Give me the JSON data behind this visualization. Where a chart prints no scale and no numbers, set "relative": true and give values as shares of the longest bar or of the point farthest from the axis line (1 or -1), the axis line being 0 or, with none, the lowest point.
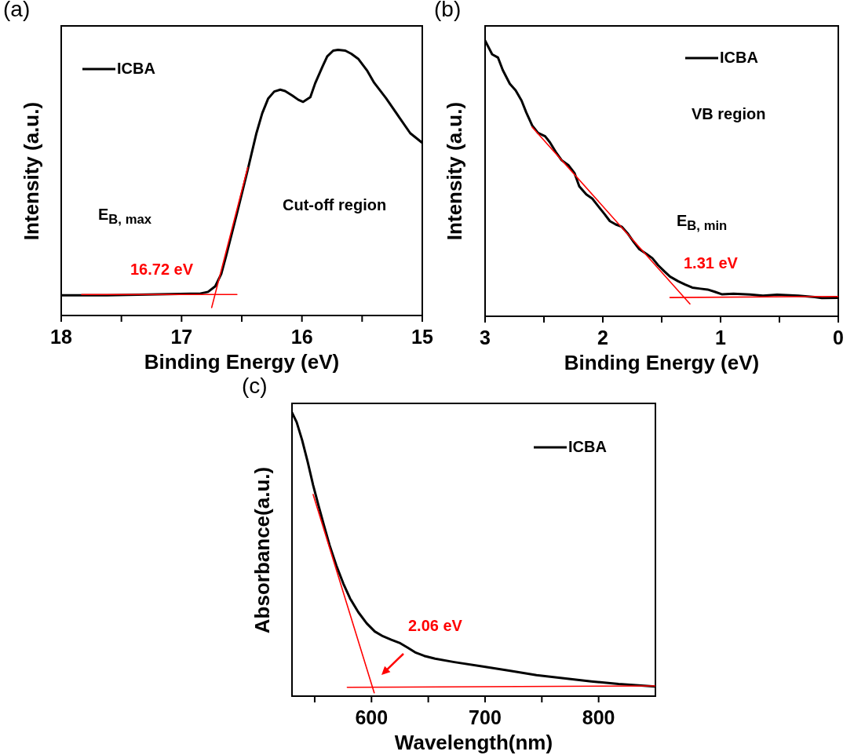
{
  "chart_data": [
    {
      "type": "line",
      "title": "(a)",
      "xlabel": "Binding Energy (eV)",
      "ylabel": "Intensity (a.u.)",
      "relative": true,
      "legend": "top left",
      "xlim": [
        18,
        15
      ],
      "xticks": [
        18,
        {
          "value": 17.5,
          "label": null
        },
        17,
        {
          "value": 16.5,
          "label": null
        },
        16,
        {
          "value": 15.5,
          "label": null
        },
        15
      ],
      "annotations": [
        "E$_{B, max}$",
        "Cut-off region",
        "16.72 eV"
      ],
      "series": [
        {
          "name": "ICBA",
          "color": "#000000",
          "x": [
            18.0,
            17.62,
            16.84,
            16.78,
            16.72,
            16.67,
            16.63,
            16.54,
            16.45,
            16.38,
            16.33,
            16.28,
            16.23,
            16.18,
            16.14,
            16.08,
            16.03,
            15.99,
            15.93,
            15.89,
            15.83,
            15.79,
            15.74,
            15.7,
            15.64,
            15.59,
            15.53,
            15.46,
            15.4,
            15.3,
            15.19,
            15.1,
            15.0
          ],
          "values": [
            0.076,
            0.076,
            0.083,
            0.089,
            0.11,
            0.157,
            0.224,
            0.384,
            0.549,
            0.683,
            0.761,
            0.817,
            0.843,
            0.85,
            0.845,
            0.828,
            0.812,
            0.804,
            0.822,
            0.874,
            0.936,
            0.975,
            0.997,
            1,
            0.997,
            0.985,
            0.965,
            0.923,
            0.876,
            0.817,
            0.745,
            0.686,
            0.65
          ]
        },
        {
          "type": "line",
          "color": "#ff0000",
          "x": [
            17.83,
            16.54
          ],
          "values": [
            0.079,
            0.079
          ]
        },
        {
          "type": "line",
          "color": "#ff0000",
          "x": [
            16.75,
            16.45
          ],
          "values": [
            0.03,
            0.557
          ]
        }
      ]
    },
    {
      "type": "line",
      "title": "(b)",
      "xlabel": "Binding Energy (eV)",
      "ylabel": "Intensity (a.u.)",
      "relative": true,
      "legend": "top right",
      "xlim": [
        3,
        0
      ],
      "xticks": [
        3,
        {
          "value": 2.5,
          "label": null
        },
        2,
        {
          "value": 1.5,
          "label": null
        },
        1,
        {
          "value": 0.5,
          "label": null
        },
        0
      ],
      "annotations": [
        "VB region",
        "E$_{B, min}$",
        "1.31 eV"
      ],
      "series": [
        {
          "name": "ICBA",
          "color": "#000000",
          "x": [
            3.0,
            2.94,
            2.89,
            2.85,
            2.79,
            2.74,
            2.69,
            2.65,
            2.6,
            2.55,
            2.49,
            2.45,
            2.4,
            2.35,
            2.29,
            2.24,
            2.2,
            2.14,
            2.09,
            2.05,
            1.99,
            1.94,
            1.89,
            1.84,
            1.79,
            1.74,
            1.69,
            1.63,
            1.58,
            1.53,
            1.48,
            1.43,
            1.36,
            1.3,
            1.24,
            1.17,
            1.11,
            1.05,
            0.99,
            0.89,
            0.75,
            0.64,
            0.52,
            0.34,
            0.2,
            0.14,
            0.0
          ],
          "values": [
            1.0,
            0.95,
            0.938,
            0.893,
            0.843,
            0.819,
            0.782,
            0.739,
            0.692,
            0.665,
            0.653,
            0.631,
            0.596,
            0.566,
            0.547,
            0.519,
            0.471,
            0.442,
            0.427,
            0.405,
            0.373,
            0.345,
            0.333,
            0.325,
            0.301,
            0.271,
            0.243,
            0.226,
            0.211,
            0.185,
            0.164,
            0.144,
            0.127,
            0.115,
            0.104,
            0.1,
            0.097,
            0.089,
            0.08,
            0.082,
            0.079,
            0.075,
            0.078,
            0.075,
            0.07,
            0.066,
            0.067
          ]
        },
        {
          "type": "line",
          "color": "#ff0000",
          "x": [
            2.6,
            1.26
          ],
          "values": [
            0.686,
            0.045
          ]
        },
        {
          "type": "line",
          "color": "#ff0000",
          "x": [
            1.43,
            0.0
          ],
          "values": [
            0.068,
            0.072
          ]
        }
      ]
    },
    {
      "type": "line",
      "title": "(c)",
      "xlabel": "Wavelength(nm)",
      "ylabel": "Absorbance(a.u.)",
      "relative": true,
      "legend": "top right",
      "xlim": [
        530,
        850
      ],
      "xticks": [
        {
          "value": 550,
          "label": null
        },
        600,
        {
          "value": 650,
          "label": null
        },
        700,
        {
          "value": 750,
          "label": null
        },
        800
      ],
      "annotations": [
        "2.06 eV"
      ],
      "series": [
        {
          "name": "ICBA",
          "color": "#000000",
          "x": [
            530,
            534.1,
            538.9,
            543.8,
            548.6,
            553.4,
            558.3,
            563.1,
            569.1,
            575.2,
            581.2,
            588.4,
            595.7,
            602.9,
            610.1,
            617.4,
            624.6,
            631.9,
            639.1,
            646.4,
            656.0,
            672.9,
            697.1,
            721.2,
            745.3,
            769.4,
            793.5,
            817.6,
            850
          ],
          "values": [
            1.0,
            0.966,
            0.903,
            0.826,
            0.744,
            0.671,
            0.6,
            0.532,
            0.46,
            0.397,
            0.344,
            0.296,
            0.257,
            0.228,
            0.211,
            0.199,
            0.188,
            0.171,
            0.153,
            0.142,
            0.132,
            0.12,
            0.105,
            0.09,
            0.074,
            0.063,
            0.052,
            0.043,
            0.034
          ]
        },
        {
          "type": "line",
          "color": "#ff0000",
          "x": [
            548.6,
            602.4
          ],
          "values": [
            0.711,
            0.012
          ]
        },
        {
          "type": "line",
          "color": "#ff0000",
          "x": [
            578.7,
            850
          ],
          "values": [
            0.031,
            0.036
          ]
        }
      ]
    }
  ]
}
